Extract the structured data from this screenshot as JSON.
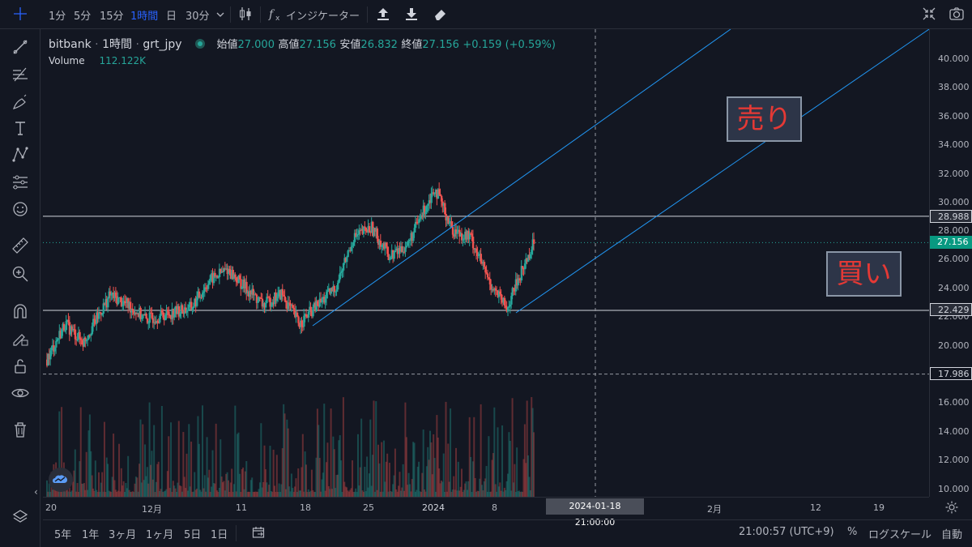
{
  "toolbar": {
    "intervals": [
      "1分",
      "5分",
      "15分",
      "1時間",
      "日",
      "30分"
    ],
    "active_interval": "1時間",
    "indicators_label": "インジケーター",
    "icons": [
      "candle-style-icon",
      "fx-icon",
      "upload-icon",
      "download-icon",
      "eraser-icon",
      "fullscreen-icon",
      "camera-icon",
      "chevron-down-icon"
    ]
  },
  "left_tools": [
    "crosshair-icon",
    "trendline-icon",
    "fib-icon",
    "brush-icon",
    "text-icon",
    "pattern-icon",
    "prediction-icon",
    "emoji-icon",
    "ruler-icon",
    "zoom-icon",
    "magnet-icon",
    "lock-draw-icon",
    "lock-icon",
    "eye-icon",
    "trash-icon",
    "layers-icon"
  ],
  "legend": {
    "exchange": "bitbank",
    "interval": "1時間",
    "symbol": "grt_jpy",
    "open_label": "始値",
    "open": "27.000",
    "high_label": "高値",
    "high": "27.156",
    "low_label": "安値",
    "low": "26.832",
    "close_label": "終値",
    "close": "27.156",
    "change": "+0.159 (+0.59%)",
    "volume_label": "Volume",
    "volume": "112.122K"
  },
  "price_axis": {
    "ticks": [
      "40.000",
      "38.000",
      "36.000",
      "34.000",
      "32.000",
      "30.000",
      "28.000",
      "26.000",
      "24.000",
      "22.000",
      "20.000",
      "16.000",
      "14.000",
      "12.000",
      "10.000"
    ],
    "hline_upper": "28.988",
    "current_price": "27.156",
    "hline_lower": "22.429",
    "dashed_level": "17.986"
  },
  "time_axis": {
    "labels": [
      "20",
      "12月",
      "11",
      "18",
      "25",
      "2024",
      "8",
      "2月",
      "12",
      "19"
    ],
    "cursor_label": "2024-01-18　21:00:00"
  },
  "notes": {
    "sell": "売り",
    "buy": "買い"
  },
  "bottom": {
    "ranges": [
      "5年",
      "1年",
      "3ヶ月",
      "1ヶ月",
      "5日",
      "1日"
    ],
    "time": "21:00:57 (UTC+9)",
    "percent": "%",
    "log": "ログスケール",
    "auto": "自動"
  },
  "colors": {
    "up": "#26a69a",
    "down": "#ef5350",
    "trend": "#2196f3",
    "accent": "#2962ff"
  },
  "chart_data": {
    "type": "candlestick",
    "symbol": "grt_jpy",
    "interval": "1時間",
    "x_range": [
      "2023-11-20",
      "2024-01-18"
    ],
    "y_range": [
      10,
      40
    ],
    "path_anchors": [
      [
        "2023-11-20",
        19.0
      ],
      [
        "2023-11-22",
        21.5
      ],
      [
        "2023-11-24",
        20.2
      ],
      [
        "2023-11-27",
        23.5
      ],
      [
        "2023-11-29",
        22.8
      ],
      [
        "2023-12-01",
        21.8
      ],
      [
        "2023-12-04",
        22.3
      ],
      [
        "2023-12-06",
        22.6
      ],
      [
        "2023-12-08",
        24.5
      ],
      [
        "2023-12-10",
        25.3
      ],
      [
        "2023-12-12",
        24.0
      ],
      [
        "2023-12-14",
        22.8
      ],
      [
        "2023-12-16",
        23.6
      ],
      [
        "2023-12-18",
        21.5
      ],
      [
        "2023-12-20",
        22.8
      ],
      [
        "2023-12-22",
        24.0
      ],
      [
        "2023-12-24",
        27.5
      ],
      [
        "2023-12-26",
        28.2
      ],
      [
        "2023-12-28",
        26.2
      ],
      [
        "2023-12-30",
        27.0
      ],
      [
        "2024-01-02",
        31.0
      ],
      [
        "2024-01-04",
        28.0
      ],
      [
        "2024-01-06",
        27.5
      ],
      [
        "2024-01-08",
        24.5
      ],
      [
        "2024-01-10",
        22.5
      ],
      [
        "2024-01-11",
        24.2
      ],
      [
        "2024-01-13",
        27.156
      ]
    ],
    "levels": [
      28.988,
      22.429,
      17.986
    ],
    "volume_last": "112.122K"
  }
}
